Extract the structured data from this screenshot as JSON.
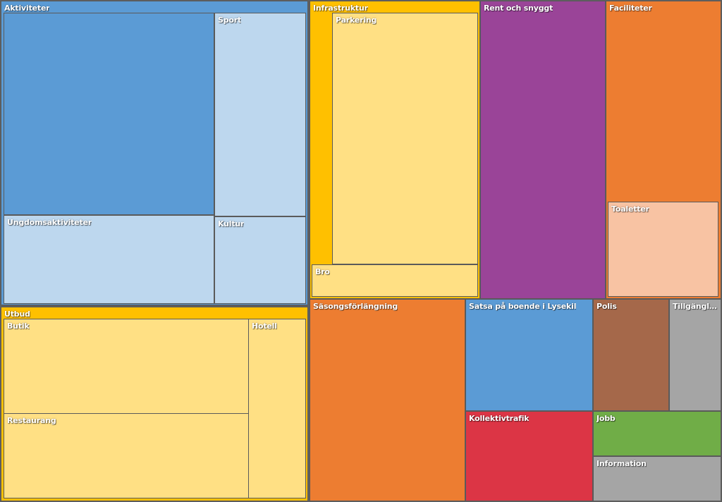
{
  "chart_data": {
    "type": "treemap",
    "nodes": [
      {
        "name": "Aktiviteter",
        "color": "#5B9BD5",
        "children": [
          {
            "name": "",
            "color": "#5B9BD5"
          },
          {
            "name": "Sport",
            "color": "#BDD7EE"
          },
          {
            "name": "Ungdomsaktiviteter",
            "color": "#BDD7EE"
          },
          {
            "name": "Kultur",
            "color": "#BDD7EE"
          }
        ]
      },
      {
        "name": "Infrastruktur",
        "color": "#FFC000",
        "children": [
          {
            "name": "Parkering",
            "color": "#FFE084"
          },
          {
            "name": "Bro",
            "color": "#FFE084"
          }
        ]
      },
      {
        "name": "Rent och snyggt",
        "color": "#9A4498"
      },
      {
        "name": "Faciliteter",
        "color": "#ED7D31",
        "children": [
          {
            "name": "Toaletter",
            "color": "#F8C3A3"
          }
        ]
      },
      {
        "name": "Utbud",
        "color": "#FFC000",
        "children": [
          {
            "name": "Butik",
            "color": "#FFE084"
          },
          {
            "name": "Hotell",
            "color": "#FFE084"
          },
          {
            "name": "Restaurang",
            "color": "#FFE084"
          }
        ]
      },
      {
        "name": "Säsongsförlängning",
        "color": "#ED7D31"
      },
      {
        "name": "Satsa på boende i Lysekil",
        "color": "#5B9BD5"
      },
      {
        "name": "Polis",
        "color": "#A5684A"
      },
      {
        "name": "Tillgängli…",
        "color": "#A5A5A5"
      },
      {
        "name": "Kollektivtrafik",
        "color": "#DC3545"
      },
      {
        "name": "Jobb",
        "color": "#70AD47"
      },
      {
        "name": "Information",
        "color": "#A5A5A5"
      }
    ]
  }
}
